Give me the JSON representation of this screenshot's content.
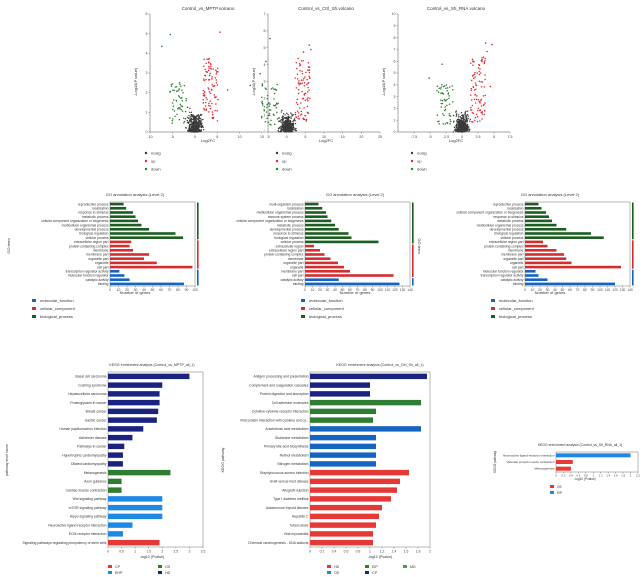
{
  "colors": {
    "up": "#e8262e",
    "down": "#2e7d32",
    "nosig": "#3a3a3a",
    "bp": "#1b5e20",
    "cc": "#d32f2f",
    "mf": "#1565c0",
    "cp": "#e53935",
    "ehp": "#1e88e5",
    "gip": "#2e7d32",
    "hd": "#1a237e",
    "md": "#1a237e",
    "ot": "#43a047"
  },
  "chart_data": [
    {
      "type": "scatter",
      "id": "volcano1",
      "title": "Control_vs_MPTP2 volcano",
      "xlabel": "Log2FC",
      "ylabel": "-Log10(P value)",
      "xlim": [
        -10,
        15
      ],
      "ylim": [
        0,
        6
      ],
      "xticks": [
        "-10",
        "-5",
        "0",
        "5",
        "10",
        "15"
      ],
      "yticks": [
        "0",
        "1",
        "2",
        "3",
        "4",
        "5",
        "6"
      ],
      "legend": [
        "nosig",
        "up",
        "down"
      ]
    },
    {
      "type": "scatter",
      "id": "volcano2",
      "title": "Control_vs_Ctrl_Sh volcano",
      "xlabel": "Log2FC",
      "ylabel": "-Log10(P value)",
      "xlim": [
        -5,
        25
      ],
      "ylim": [
        0,
        7
      ],
      "xticks": [
        "-5",
        "0",
        "5",
        "10",
        "15",
        "20",
        "25"
      ],
      "yticks": [
        "0",
        "1",
        "2",
        "3",
        "4",
        "5",
        "6",
        "7"
      ],
      "legend": [
        "nosig",
        "up",
        "down"
      ]
    },
    {
      "type": "scatter",
      "id": "volcano3",
      "title": "Control_vs_Sh_RNA volcano",
      "xlabel": "Log2FC",
      "ylabel": "-Log10(P value)",
      "xlim": [
        -10,
        7.5
      ],
      "ylim": [
        0,
        10
      ],
      "xticks": [
        "-7.5",
        "-5",
        "-2.5",
        "0",
        "2.5",
        "5",
        "7.5"
      ],
      "yticks": [
        "0",
        "1",
        "2",
        "3",
        "4",
        "5",
        "6",
        "7",
        "8",
        "9",
        "10"
      ],
      "legend": [
        "nosig",
        "up",
        "down"
      ]
    },
    {
      "type": "bar",
      "id": "go1",
      "orientation": "horizontal",
      "title": "GO annotation analysis (Level 2)",
      "xlabel": "Number of genes",
      "ylabel": "GO term",
      "xlim": [
        0,
        100
      ],
      "xticks": [
        "0",
        "10",
        "20",
        "30",
        "40",
        "50",
        "60",
        "70",
        "80",
        "90",
        "100"
      ],
      "legend": [
        "molecular_function",
        "cellular_component",
        "biological_process"
      ],
      "categories": [
        "reproductive process",
        "localization",
        "response to stimulus",
        "metabolic process",
        "cellular component organization or biogenesis",
        "multicellular organismal process",
        "developmental process",
        "biological regulation",
        "cellular process",
        "extracellular region part",
        "protein-containing complex",
        "membrane",
        "membrane part",
        "organelle part",
        "organelle",
        "cell part",
        "transcription regulator activity",
        "molecular function regulator",
        "catalytic activity",
        "binding"
      ],
      "groups": [
        "bp",
        "bp",
        "bp",
        "bp",
        "bp",
        "bp",
        "bp",
        "bp",
        "bp",
        "cc",
        "cc",
        "cc",
        "cc",
        "cc",
        "cc",
        "cc",
        "mf",
        "mf",
        "mf",
        "mf"
      ],
      "values": [
        16,
        19,
        27,
        30,
        33,
        37,
        46,
        77,
        86,
        25,
        23,
        27,
        46,
        40,
        55,
        97,
        11,
        17,
        23,
        87
      ]
    },
    {
      "type": "bar",
      "id": "go2",
      "orientation": "horizontal",
      "title": "GO annotation analysis (Level 2)",
      "xlabel": "Number of genes",
      "ylabel": "GO term",
      "xlim": [
        0,
        140
      ],
      "xticks": [
        "0",
        "10",
        "20",
        "30",
        "40",
        "50",
        "60",
        "70",
        "80",
        "90",
        "100",
        "110",
        "120",
        "130",
        "140"
      ],
      "legend": [
        "molecular_function",
        "cellular_component",
        "biological_process"
      ],
      "categories": [
        "multi-organism process",
        "localization",
        "multicellular organismal process",
        "immune system process",
        "cellular component organization or biogenesis",
        "metabolic process",
        "developmental process",
        "response to stimulus",
        "biological regulation",
        "cellular process",
        "extracellular region",
        "extracellular region part",
        "protein-containing complex",
        "membrane",
        "organelle part",
        "organelle",
        "membrane part",
        "cell part",
        "catalytic activity",
        "binding"
      ],
      "groups": [
        "bp",
        "bp",
        "bp",
        "bp",
        "bp",
        "bp",
        "bp",
        "bp",
        "bp",
        "bp",
        "cc",
        "cc",
        "cc",
        "cc",
        "cc",
        "cc",
        "cc",
        "cc",
        "mf",
        "mf"
      ],
      "values": [
        18,
        23,
        28,
        30,
        35,
        40,
        45,
        58,
        62,
        98,
        12,
        20,
        26,
        34,
        44,
        52,
        60,
        118,
        45,
        126
      ]
    },
    {
      "type": "bar",
      "id": "go3",
      "orientation": "horizontal",
      "title": "GO annotation analysis (Level 2)",
      "xlabel": "Number of genes",
      "ylabel": "GO term",
      "xlim": [
        0,
        140
      ],
      "xticks": [
        "0",
        "10",
        "20",
        "30",
        "40",
        "50",
        "60",
        "70",
        "80",
        "90",
        "100",
        "110",
        "120",
        "130",
        "140"
      ],
      "legend": [
        "molecular_function",
        "cellular_component",
        "biological_process"
      ],
      "categories": [
        "reproductive process",
        "localization",
        "cellular component organization or biogenesis",
        "response to stimulus",
        "metabolic process",
        "multicellular organismal process",
        "developmental process",
        "biological regulation",
        "cellular process",
        "extracellular region part",
        "protein-containing complex",
        "membrane",
        "membrane part",
        "organelle part",
        "organelle",
        "cell part",
        "molecular function regulator",
        "transcription regulator activity",
        "catalytic activity",
        "binding"
      ],
      "groups": [
        "bp",
        "bp",
        "bp",
        "bp",
        "bp",
        "bp",
        "bp",
        "bp",
        "bp",
        "cc",
        "cc",
        "cc",
        "cc",
        "cc",
        "cc",
        "cc",
        "mf",
        "mf",
        "mf",
        "mf"
      ],
      "values": [
        18,
        22,
        28,
        32,
        36,
        42,
        55,
        88,
        105,
        24,
        30,
        42,
        52,
        55,
        62,
        128,
        14,
        18,
        30,
        120
      ]
    },
    {
      "type": "bar",
      "id": "kegg1",
      "orientation": "horizontal",
      "title": "KEGG enrichment analysis (Control_vs_MPTP_all_1)",
      "xlabel": "-log10 (Pvalue)",
      "ylabel": "pathway level name",
      "xlim": [
        0,
        3.5
      ],
      "xticks": [
        "0",
        "0.5",
        "1",
        "1.5",
        "2",
        "2.5",
        "3",
        "3.5"
      ],
      "legend": [
        "CP",
        "EHP",
        "OS",
        "HD"
      ],
      "categories": [
        "Basal cell carcinoma",
        "Cushing syndrome",
        "Hepatocellular carcinoma",
        "Proteoglycans in cancer",
        "Breast cancer",
        "Gastric cancer",
        "Human papillomavirus infection",
        "Alzheimer disease",
        "Pathways in cancer",
        "Hypertrophic cardiomyopathy",
        "Dilated cardiomyopathy",
        "Melanogenesis",
        "Axon guidance",
        "Cardiac muscle contraction",
        "Wnt signaling pathway",
        "mTOR signaling pathway",
        "Hippo signaling pathway",
        "Neuroactive ligand-receptor interaction",
        "ECM-receptor interaction",
        "Signaling pathways regulating pluripotency of stem cells"
      ],
      "groups": [
        "hd",
        "hd",
        "hd",
        "hd",
        "hd",
        "hd",
        "hd",
        "hd",
        "hd",
        "hd",
        "hd",
        "gip",
        "gip",
        "gip",
        "ehp",
        "ehp",
        "ehp",
        "ehp",
        "ehp",
        "cp"
      ],
      "values": [
        3.0,
        2.0,
        1.9,
        1.9,
        1.85,
        1.8,
        1.3,
        0.9,
        0.6,
        0.55,
        0.55,
        2.3,
        0.5,
        0.5,
        2.0,
        2.0,
        2.0,
        0.9,
        0.55,
        1.9
      ]
    },
    {
      "type": "bar",
      "id": "kegg2",
      "orientation": "horizontal",
      "title": "KEGG enrichment analysis (Control_vs_Ctrl_Sh_all_1)",
      "xlabel": "-log10 (Pvalue)",
      "ylabel": "KEGG pathway",
      "xlim": [
        0,
        2.0
      ],
      "xticks": [
        "0",
        "0.2",
        "0.4",
        "0.6",
        "0.8",
        "1",
        "1.2",
        "1.4",
        "1.6",
        "1.8",
        "2"
      ],
      "legend": [
        "HD",
        "EIP",
        "OS",
        "CP",
        "MD"
      ],
      "categories": [
        "Antigen processing and presentation",
        "Complement and coagulation cascades",
        "Protein digestion and absorption",
        "Cell adhesion molecules",
        "Cytokine-cytokine receptor interaction",
        "Viral protein interaction with cytokine and cy...",
        "Arachidonic acid metabolism",
        "Glutamine metabolism",
        "Primary bile acid biosynthesis",
        "Retinol metabolism",
        "Nitrogen metabolism",
        "Staphylococcus aureus infection",
        "Graft-versus-host disease",
        "Allograft rejection",
        "Type I diabetes mellitus",
        "Autoimmune thyroid disease",
        "Hepatitis C",
        "Tuberculosis",
        "Viral myocarditis",
        "Chemical carcinogenesis - DNA adducts"
      ],
      "groups": [
        "hd",
        "hd",
        "hd",
        "gip",
        "gip",
        "gip",
        "mf",
        "mf",
        "mf",
        "mf",
        "mf",
        "cp",
        "cp",
        "cp",
        "cp",
        "cp",
        "cp",
        "cp",
        "cp",
        "cp"
      ],
      "values": [
        1.95,
        1.0,
        1.0,
        1.85,
        1.1,
        1.05,
        1.85,
        1.1,
        1.1,
        1.1,
        1.1,
        1.65,
        1.5,
        1.45,
        1.35,
        1.2,
        1.15,
        1.1,
        1.05,
        1.05
      ]
    },
    {
      "type": "bar",
      "id": "kegg3",
      "orientation": "horizontal",
      "title": "KEGG enrichment analysis (Control_vs_Sh_RNA_all_1)",
      "xlabel": "-log10 (Pvalue)",
      "ylabel": "KEGG pathway",
      "xlim": [
        0,
        2.2
      ],
      "xticks": [
        "0",
        "0.2",
        "0.4",
        "0.6",
        "0.8",
        "1",
        "1.2",
        "1.4",
        "1.6",
        "1.8",
        "2",
        "2.2"
      ],
      "legend": [
        "OS",
        "EIP"
      ],
      "categories": [
        "Neuroactive ligand-receptor interaction",
        "Vascular smooth muscle contraction",
        "Melanogenesis"
      ],
      "groups": [
        "ehp",
        "cp",
        "cp"
      ],
      "values": [
        2.0,
        0.45,
        0.4
      ]
    }
  ],
  "text": {
    "v1_title": "Control_vs_MPTP.volcano",
    "v2_title": "Control_vs_Ctrl_Sh.volcano",
    "v3_title": "Control_vs_Sh_RNA.volcano",
    "v_xlabel": "Log2FC",
    "v_ylabel": "-Log10(P value)",
    "leg_nosig": "nosig",
    "leg_up": "up",
    "leg_down": "down",
    "go_title": "GO annotation analysis (Level 2)",
    "go_xlabel": "Number of genes",
    "go_ylabel": "GO term",
    "leg_mf": "molecular_function",
    "leg_cc": "cellular_component",
    "leg_bp": "biological_process",
    "k1_title": "KEGG enrichment analysis (Control_vs_MPTP_all_1)",
    "k2_title": "KEGG enrichment analysis (Control_vs_Ctrl_Sh_all_1)",
    "k3_title": "KEGG enrichment analysis (Control_vs_Sh_RNA_all_1)",
    "k_xlabel": "-log10 (Pvalue)",
    "k1_ylabel": "pathway level name",
    "k_ylabel": "KEGG pathway"
  }
}
